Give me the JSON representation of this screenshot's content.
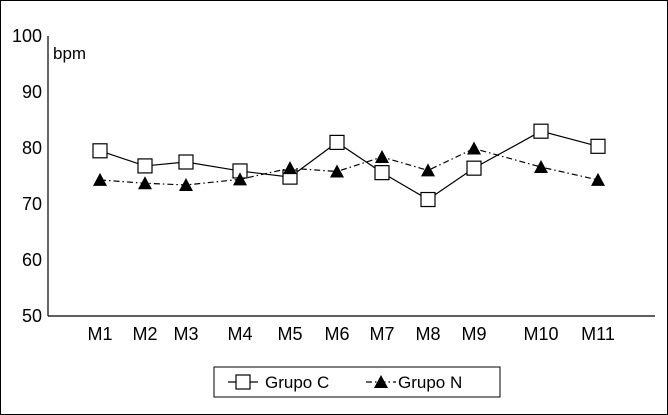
{
  "chart_data": {
    "type": "line",
    "categories": [
      "M1",
      "M2",
      "M3",
      "M4",
      "M5",
      "M6",
      "M7",
      "M8",
      "M9",
      "M10",
      "M11"
    ],
    "ylabel": "bpm",
    "ylim": [
      50,
      100
    ],
    "yticks": [
      "50",
      "60",
      "70",
      "80",
      "90",
      "100"
    ],
    "grid": false,
    "legend": "bottom",
    "series": [
      {
        "name": "Grupo C",
        "marker": "open-square",
        "line": "solid",
        "color": "#000000",
        "values": [
          79.5,
          76.8,
          77.5,
          75.9,
          74.8,
          81.0,
          75.6,
          70.8,
          76.4,
          83.0,
          80.3
        ]
      },
      {
        "name": "Grupo N",
        "marker": "filled-triangle",
        "line": "dash-dot",
        "color": "#000000",
        "values": [
          74.3,
          73.7,
          73.4,
          74.4,
          76.4,
          75.8,
          78.4,
          76.0,
          79.9,
          76.6,
          74.3
        ]
      }
    ]
  }
}
